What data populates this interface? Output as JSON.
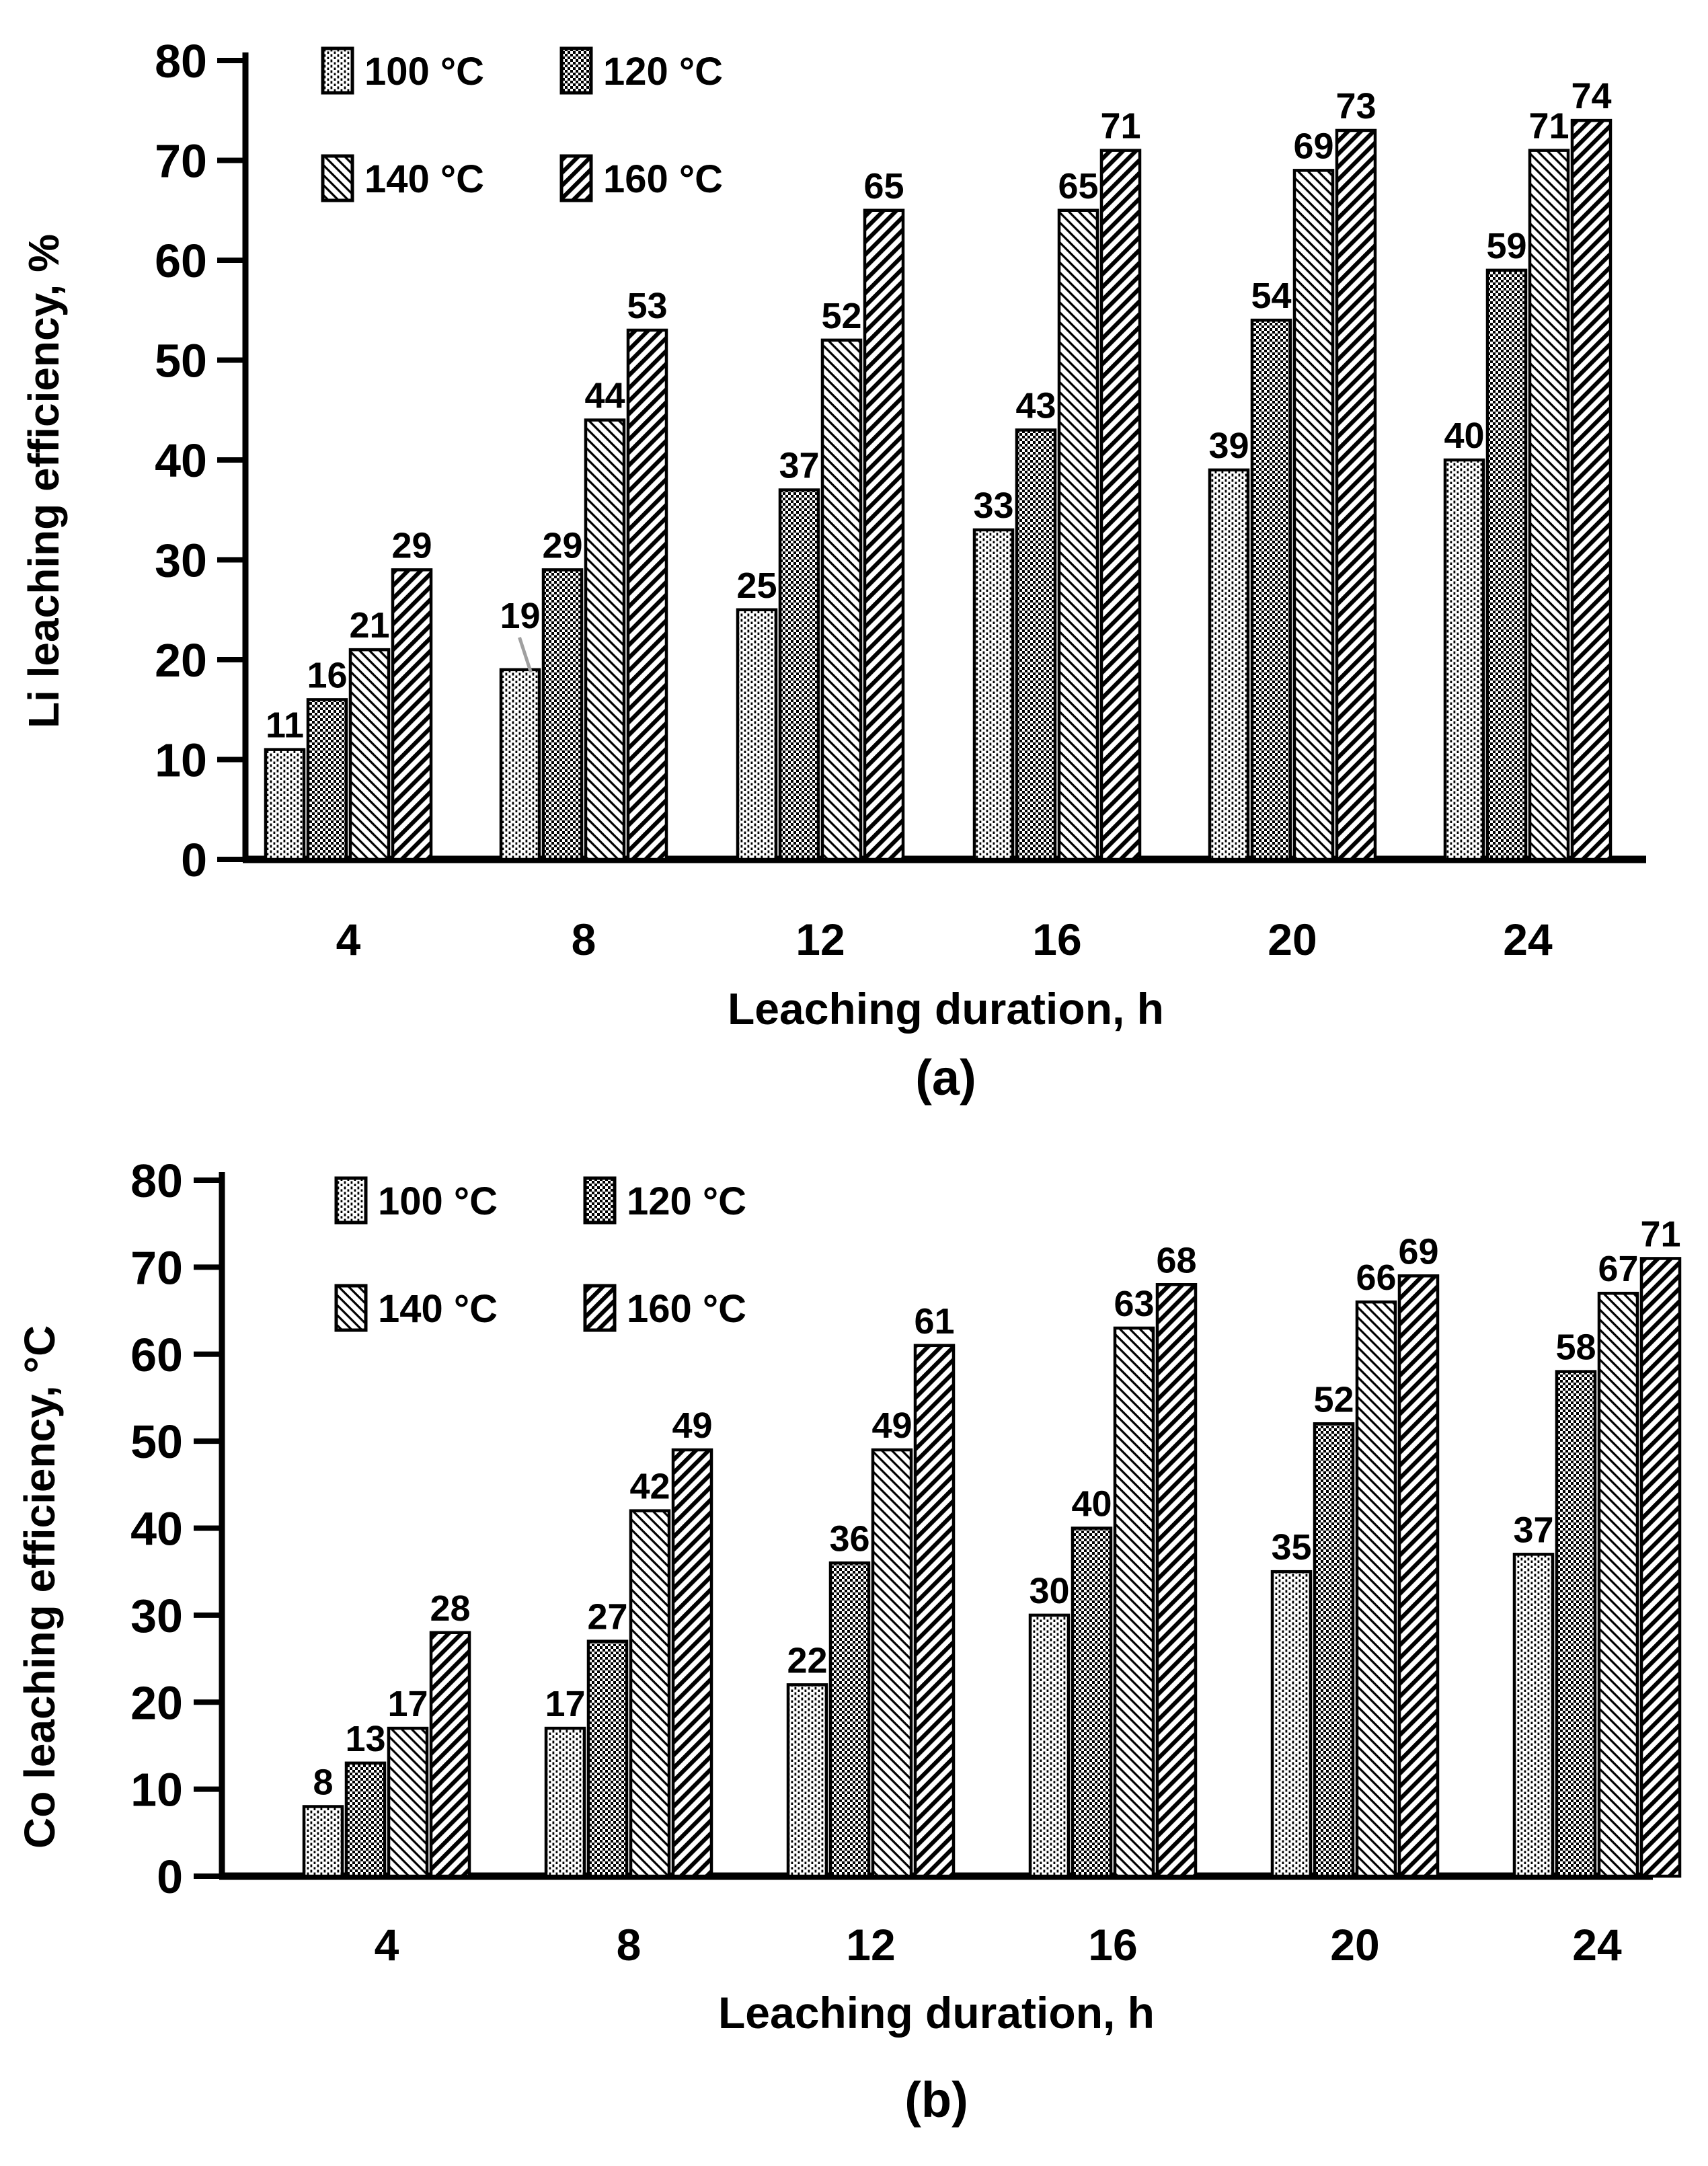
{
  "page": {
    "background": "#ffffff",
    "ink_color": "#000000",
    "leader_line_color": "#a0a0a0"
  },
  "chart_data": [
    {
      "type": "bar",
      "panel_label": "(a)",
      "xlabel": "Leaching duration, h",
      "ylabel": "Li leaching efficiency, %",
      "categories": [
        "4",
        "8",
        "12",
        "16",
        "20",
        "24"
      ],
      "series": [
        {
          "name": "100 °C",
          "pattern": "dots-vertical",
          "values": [
            11,
            19,
            25,
            33,
            39,
            40
          ]
        },
        {
          "name": "120 °C",
          "pattern": "checker",
          "values": [
            16,
            29,
            37,
            43,
            54,
            59
          ]
        },
        {
          "name": "140 °C",
          "pattern": "diag-backslash-thin",
          "values": [
            21,
            44,
            52,
            65,
            69,
            71
          ]
        },
        {
          "name": "160 °C",
          "pattern": "diag-slash-thick",
          "values": [
            29,
            53,
            65,
            71,
            73,
            74
          ]
        }
      ],
      "ylim": [
        0,
        80
      ],
      "ytick_step": 10,
      "grid": false,
      "bar_fill_color": "#000000",
      "bar_background": "#ffffff",
      "legend_position": "top-left-inside-two-rows",
      "value_labels": true,
      "annotations": [
        {
          "type": "leader-line",
          "series": 0,
          "category_index": 1,
          "note": "gray leader line from the 19 data label to the 100 °C bar top in the 8 h group"
        }
      ]
    },
    {
      "type": "bar",
      "panel_label": "(b)",
      "xlabel": "Leaching duration, h",
      "ylabel": "Co leaching efficiency, °C",
      "categories": [
        "4",
        "8",
        "12",
        "16",
        "20",
        "24"
      ],
      "series": [
        {
          "name": "100 °C",
          "pattern": "dots-vertical",
          "values": [
            8,
            17,
            22,
            30,
            35,
            37
          ]
        },
        {
          "name": "120 °C",
          "pattern": "checker",
          "values": [
            13,
            27,
            36,
            40,
            52,
            58
          ]
        },
        {
          "name": "140 °C",
          "pattern": "diag-backslash-thin",
          "values": [
            17,
            42,
            49,
            63,
            66,
            67
          ]
        },
        {
          "name": "160 °C",
          "pattern": "diag-slash-thick",
          "values": [
            28,
            49,
            61,
            68,
            69,
            71
          ]
        }
      ],
      "ylim": [
        0,
        80
      ],
      "ytick_step": 10,
      "grid": false,
      "bar_fill_color": "#000000",
      "bar_background": "#ffffff",
      "legend_position": "top-left-inside-two-rows",
      "value_labels": true,
      "annotations": []
    }
  ]
}
